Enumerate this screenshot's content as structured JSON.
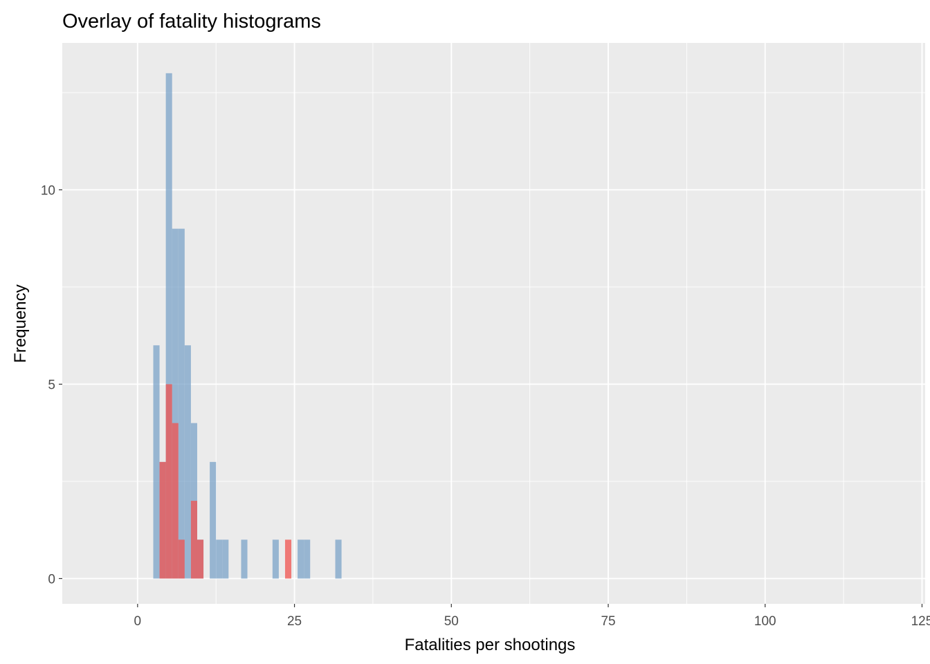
{
  "chart_data": {
    "type": "histogram",
    "title": "Overlay of fatality histograms",
    "xlabel": "Fatalities per shootings",
    "ylabel": "Frequency",
    "xlim": [
      -12,
      125.5
    ],
    "ylim": [
      -0.65,
      13.78
    ],
    "x_ticks": [
      0,
      25,
      50,
      75,
      100,
      125
    ],
    "y_ticks": [
      0,
      5,
      10
    ],
    "grid": true,
    "legend": "none",
    "bin_width": 1,
    "colors": {
      "panel_background": "#ebebeb",
      "grid": "#ffffff",
      "blue_series": "#7ba3c8",
      "red_series": "#f0534f"
    },
    "series": [
      {
        "color": "#7ba3c8",
        "opacity": 0.75,
        "bins": [
          {
            "x": 3,
            "count": 6
          },
          {
            "x": 4,
            "count": 3
          },
          {
            "x": 5,
            "count": 13
          },
          {
            "x": 6,
            "count": 9
          },
          {
            "x": 7,
            "count": 9
          },
          {
            "x": 8,
            "count": 6
          },
          {
            "x": 9,
            "count": 4
          },
          {
            "x": 10,
            "count": 1
          },
          {
            "x": 12,
            "count": 3
          },
          {
            "x": 13,
            "count": 1
          },
          {
            "x": 14,
            "count": 1
          },
          {
            "x": 17,
            "count": 1
          },
          {
            "x": 22,
            "count": 1
          },
          {
            "x": 26,
            "count": 1
          },
          {
            "x": 27,
            "count": 1
          },
          {
            "x": 32,
            "count": 1
          }
        ]
      },
      {
        "color": "#f0534f",
        "opacity": 0.75,
        "bins": [
          {
            "x": 4,
            "count": 3
          },
          {
            "x": 5,
            "count": 5
          },
          {
            "x": 6,
            "count": 4
          },
          {
            "x": 7,
            "count": 1
          },
          {
            "x": 9,
            "count": 2
          },
          {
            "x": 10,
            "count": 1
          },
          {
            "x": 24,
            "count": 1
          }
        ]
      }
    ]
  }
}
